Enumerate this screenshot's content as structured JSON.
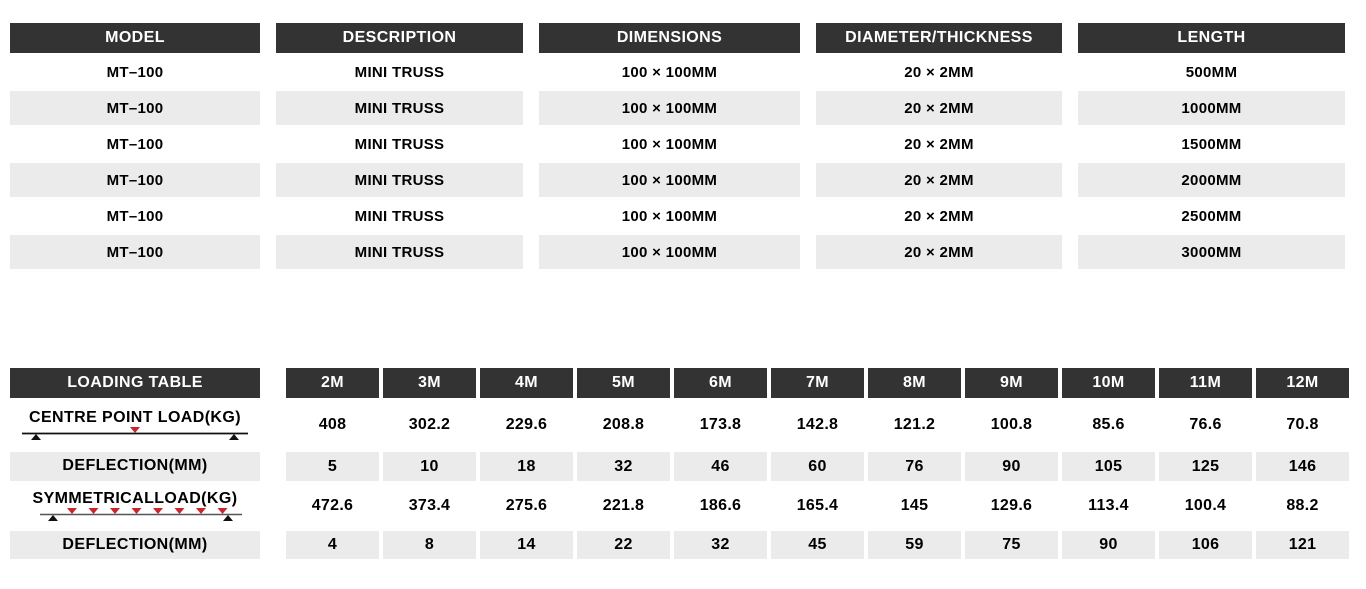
{
  "colors": {
    "header_bg": "#333333",
    "header_text": "#ffffff",
    "shaded_row_bg": "#ebebeb",
    "text": "#000000",
    "load_arrow_red": "#c9252c",
    "support_black": "#111111"
  },
  "spec_table": {
    "columns": [
      "MODEL",
      "DESCRIPTION",
      "DIMENSIONS",
      "DIAMETER/THICKNESS",
      "LENGTH"
    ],
    "rows": [
      [
        "MT–100",
        "MINI TRUSS",
        "100 × 100MM",
        "20 × 2MM",
        "500MM"
      ],
      [
        "MT–100",
        "MINI TRUSS",
        "100 × 100MM",
        "20 × 2MM",
        "1000MM"
      ],
      [
        "MT–100",
        "MINI TRUSS",
        "100 × 100MM",
        "20 × 2MM",
        "1500MM"
      ],
      [
        "MT–100",
        "MINI TRUSS",
        "100 × 100MM",
        "20 × 2MM",
        "2000MM"
      ],
      [
        "MT–100",
        "MINI TRUSS",
        "100 × 100MM",
        "20 × 2MM",
        "2500MM"
      ],
      [
        "MT–100",
        "MINI TRUSS",
        "100 × 100MM",
        "20 × 2MM",
        "3000MM"
      ]
    ]
  },
  "loading_table": {
    "title": "LOADING TABLE",
    "spans": [
      "2M",
      "3M",
      "4M",
      "5M",
      "6M",
      "7M",
      "8M",
      "9M",
      "10M",
      "11M",
      "12M"
    ],
    "rows": [
      {
        "label": "CENTRE POINT LOAD(KG)",
        "diagram": "centre-point-load-diagram",
        "shaded": false,
        "values": [
          "408",
          "302.2",
          "229.6",
          "208.8",
          "173.8",
          "142.8",
          "121.2",
          "100.8",
          "85.6",
          "76.6",
          "70.8"
        ]
      },
      {
        "label": "DEFLECTION(MM)",
        "diagram": null,
        "shaded": true,
        "values": [
          "5",
          "10",
          "18",
          "32",
          "46",
          "60",
          "76",
          "90",
          "105",
          "125",
          "146"
        ]
      },
      {
        "label": "SYMMETRICALLOAD(KG)",
        "diagram": "symmetrical-load-diagram",
        "shaded": false,
        "values": [
          "472.6",
          "373.4",
          "275.6",
          "221.8",
          "186.6",
          "165.4",
          "145",
          "129.6",
          "113.4",
          "100.4",
          "88.2"
        ]
      },
      {
        "label": "DEFLECTION(MM)",
        "diagram": null,
        "shaded": true,
        "values": [
          "4",
          "8",
          "14",
          "22",
          "32",
          "45",
          "59",
          "75",
          "90",
          "106",
          "121"
        ]
      }
    ]
  }
}
